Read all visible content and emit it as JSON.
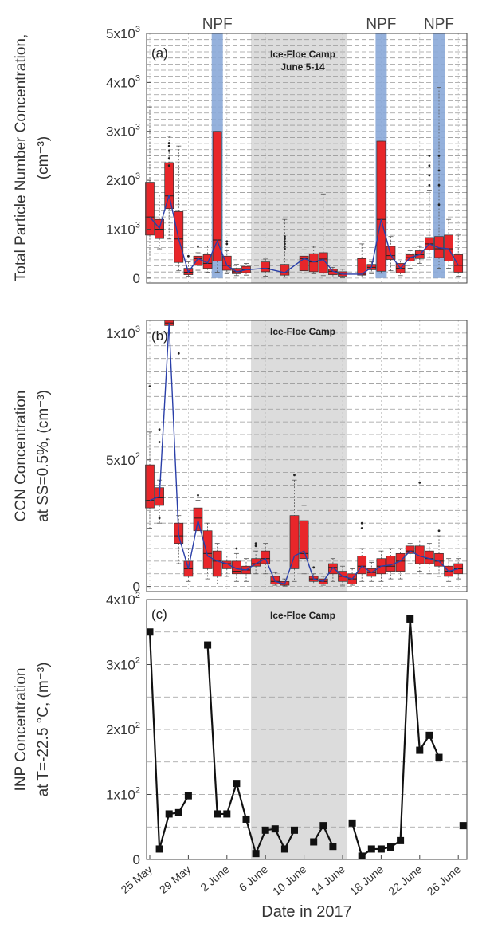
{
  "chart_data": [
    {
      "type": "box",
      "panel_label": "(a)",
      "ylabel_line1": "Total Particle Number Concentration,",
      "ylabel_line2": "(cm⁻³)",
      "ylim": [
        -100,
        5000
      ],
      "yticks": [
        {
          "value": 0,
          "base": "0",
          "exp": ""
        },
        {
          "value": 1000,
          "base": "1x10",
          "exp": "3"
        },
        {
          "value": 2000,
          "base": "2x10",
          "exp": "3"
        },
        {
          "value": 3000,
          "base": "3x10",
          "exp": "3"
        },
        {
          "value": 4000,
          "base": "4x10",
          "exp": "3"
        },
        {
          "value": 5000,
          "base": "5x10",
          "exp": "3"
        }
      ],
      "camp_label_line1": "Ice-Floe Camp",
      "camp_label_line2": "June 5-14",
      "camp_start": 10.5,
      "camp_end": 20.5,
      "npf_events": [
        {
          "label": "NPF",
          "day": 7.0,
          "top": 3000
        },
        {
          "label": "NPF",
          "day": 24.0,
          "top": 2800
        },
        {
          "label": "NPF",
          "day": 30.0,
          "top": 900
        }
      ],
      "boxes": [
        {
          "day": 0,
          "q1": 880,
          "med": 1250,
          "q3": 1960,
          "lo": 350,
          "hi": 3500,
          "mean": 1250
        },
        {
          "day": 1,
          "q1": 810,
          "med": 1000,
          "q3": 1200,
          "lo": 600,
          "hi": 1700,
          "mean": 1020
        },
        {
          "day": 2,
          "q1": 1420,
          "med": 1680,
          "q3": 2360,
          "lo": 800,
          "hi": 2900,
          "mean": 1700
        },
        {
          "day": 3,
          "q1": 320,
          "med": 800,
          "q3": 1360,
          "lo": 150,
          "hi": 2700,
          "mean": 800
        },
        {
          "day": 4,
          "q1": 70,
          "med": 120,
          "q3": 200,
          "lo": 40,
          "hi": 330,
          "mean": 120
        },
        {
          "day": 5,
          "q1": 260,
          "med": 400,
          "q3": 450,
          "lo": 160,
          "hi": 520,
          "mean": 400
        },
        {
          "day": 6,
          "q1": 200,
          "med": 300,
          "q3": 480,
          "lo": 120,
          "hi": 660,
          "mean": 310
        },
        {
          "day": 7,
          "q1": 350,
          "med": 780,
          "q3": 3000,
          "lo": 120,
          "hi": 3000,
          "mean": 760
        },
        {
          "day": 8,
          "q1": 160,
          "med": 260,
          "q3": 450,
          "lo": 90,
          "hi": 560,
          "mean": 260
        },
        {
          "day": 9,
          "q1": 90,
          "med": 130,
          "q3": 200,
          "lo": 50,
          "hi": 280,
          "mean": 130
        },
        {
          "day": 10,
          "q1": 110,
          "med": 170,
          "q3": 240,
          "lo": 60,
          "hi": 300,
          "mean": 170
        },
        {
          "day": 12,
          "q1": 130,
          "med": 200,
          "q3": 330,
          "lo": 40,
          "hi": 390,
          "mean": 200
        },
        {
          "day": 14,
          "q1": 60,
          "med": 110,
          "q3": 280,
          "lo": 20,
          "hi": 1200,
          "mean": 110
        },
        {
          "day": 16,
          "q1": 150,
          "med": 400,
          "q3": 450,
          "lo": 100,
          "hi": 580,
          "mean": 400
        },
        {
          "day": 17,
          "q1": 130,
          "med": 330,
          "q3": 500,
          "lo": 90,
          "hi": 650,
          "mean": 330
        },
        {
          "day": 18,
          "q1": 110,
          "med": 390,
          "q3": 520,
          "lo": 50,
          "hi": 1720,
          "mean": 380
        },
        {
          "day": 19,
          "q1": 70,
          "med": 140,
          "q3": 180,
          "lo": 20,
          "hi": 220,
          "mean": 140
        },
        {
          "day": 20,
          "q1": 40,
          "med": 80,
          "q3": 130,
          "lo": 10,
          "hi": 180,
          "mean": 80
        },
        {
          "day": 22,
          "q1": 60,
          "med": 80,
          "q3": 400,
          "lo": 20,
          "hi": 700,
          "mean": 80
        },
        {
          "day": 23,
          "q1": 170,
          "med": 220,
          "q3": 280,
          "lo": 90,
          "hi": 330,
          "mean": 220
        },
        {
          "day": 24,
          "q1": 140,
          "med": 1200,
          "q3": 2800,
          "lo": 100,
          "hi": 2800,
          "mean": 1200
        },
        {
          "day": 25,
          "q1": 380,
          "med": 460,
          "q3": 650,
          "lo": 150,
          "hi": 850,
          "mean": 470
        },
        {
          "day": 26,
          "q1": 110,
          "med": 200,
          "q3": 300,
          "lo": 50,
          "hi": 350,
          "mean": 200
        },
        {
          "day": 27,
          "q1": 350,
          "med": 420,
          "q3": 480,
          "lo": 200,
          "hi": 560,
          "mean": 420
        },
        {
          "day": 28,
          "q1": 400,
          "med": 480,
          "q3": 560,
          "lo": 300,
          "hi": 650,
          "mean": 480
        },
        {
          "day": 29,
          "q1": 580,
          "med": 700,
          "q3": 830,
          "lo": 420,
          "hi": 1800,
          "mean": 700
        },
        {
          "day": 30,
          "q1": 420,
          "med": 600,
          "q3": 850,
          "lo": 200,
          "hi": 3900,
          "mean": 620
        },
        {
          "day": 31,
          "q1": 350,
          "med": 600,
          "q3": 880,
          "lo": 200,
          "hi": 1200,
          "mean": 600
        },
        {
          "day": 32,
          "q1": 120,
          "med": 260,
          "q3": 480,
          "lo": 40,
          "hi": 880,
          "mean": 260
        }
      ],
      "outliers": [
        {
          "day": 2,
          "y": 2300
        },
        {
          "day": 2,
          "y": 2450
        },
        {
          "day": 2,
          "y": 2600
        },
        {
          "day": 2,
          "y": 2700
        },
        {
          "day": 2,
          "y": 2760
        },
        {
          "day": 4,
          "y": 450
        },
        {
          "day": 5,
          "y": 650
        },
        {
          "day": 8,
          "y": 700
        },
        {
          "day": 8,
          "y": 750
        },
        {
          "day": 14,
          "y": 600
        },
        {
          "day": 14,
          "y": 650
        },
        {
          "day": 14,
          "y": 700
        },
        {
          "day": 14,
          "y": 750
        },
        {
          "day": 14,
          "y": 800
        },
        {
          "day": 14,
          "y": 850
        },
        {
          "day": 29,
          "y": 1900
        },
        {
          "day": 29,
          "y": 2100
        },
        {
          "day": 29,
          "y": 2300
        },
        {
          "day": 29,
          "y": 2500
        },
        {
          "day": 30,
          "y": 1500
        },
        {
          "day": 30,
          "y": 1900
        },
        {
          "day": 30,
          "y": 2200
        },
        {
          "day": 30,
          "y": 2500
        }
      ]
    },
    {
      "type": "box",
      "panel_label": "(b)",
      "ylabel_line1": "CCN Concentration",
      "ylabel_line2": "at SS=0.5%, (cm⁻³)",
      "ylim": [
        -20,
        1050
      ],
      "yticks": [
        {
          "value": 0,
          "base": "0",
          "exp": ""
        },
        {
          "value": 500,
          "base": "5x10",
          "exp": "2"
        },
        {
          "value": 1000,
          "base": "1x10",
          "exp": "3"
        }
      ],
      "camp_label_line1": "Ice-Floe Camp",
      "camp_label_line2": "",
      "camp_start": 10.5,
      "camp_end": 20.5,
      "npf_events": [],
      "boxes": [
        {
          "day": 0,
          "q1": 310,
          "med": 340,
          "q3": 480,
          "lo": 230,
          "hi": 610,
          "mean": 340
        },
        {
          "day": 1,
          "q1": 320,
          "med": 350,
          "q3": 390,
          "lo": 250,
          "hi": 420,
          "mean": 355
        },
        {
          "day": 2,
          "q1": 1030,
          "med": 1040,
          "q3": 1050,
          "lo": 1000,
          "hi": 1050,
          "mean": 1040
        },
        {
          "day": 3,
          "q1": 170,
          "med": 200,
          "q3": 250,
          "lo": 90,
          "hi": 280,
          "mean": 200
        },
        {
          "day": 4,
          "q1": 40,
          "med": 70,
          "q3": 100,
          "lo": 20,
          "hi": 150,
          "mean": 70
        },
        {
          "day": 5,
          "q1": 220,
          "med": 270,
          "q3": 310,
          "lo": 150,
          "hi": 340,
          "mean": 260
        },
        {
          "day": 6,
          "q1": 70,
          "med": 130,
          "q3": 220,
          "lo": 30,
          "hi": 250,
          "mean": 120
        },
        {
          "day": 7,
          "q1": 40,
          "med": 100,
          "q3": 140,
          "lo": 10,
          "hi": 170,
          "mean": 100
        },
        {
          "day": 8,
          "q1": 70,
          "med": 90,
          "q3": 100,
          "lo": 40,
          "hi": 120,
          "mean": 90
        },
        {
          "day": 9,
          "q1": 50,
          "med": 60,
          "q3": 100,
          "lo": 20,
          "hi": 130,
          "mean": 70
        },
        {
          "day": 10,
          "q1": 50,
          "med": 65,
          "q3": 80,
          "lo": 20,
          "hi": 110,
          "mean": 65
        },
        {
          "day": 11,
          "q1": 80,
          "med": 90,
          "q3": 110,
          "lo": 50,
          "hi": 140,
          "mean": 90
        },
        {
          "day": 12,
          "q1": 90,
          "med": 110,
          "q3": 140,
          "lo": 50,
          "hi": 170,
          "mean": 110
        },
        {
          "day": 13,
          "q1": 10,
          "med": 20,
          "q3": 40,
          "lo": 5,
          "hi": 55,
          "mean": 20
        },
        {
          "day": 14,
          "q1": 5,
          "med": 10,
          "q3": 20,
          "lo": 2,
          "hi": 30,
          "mean": 10
        },
        {
          "day": 15,
          "q1": 70,
          "med": 120,
          "q3": 280,
          "lo": 20,
          "hi": 420,
          "mean": 120
        },
        {
          "day": 16,
          "q1": 110,
          "med": 130,
          "q3": 260,
          "lo": 50,
          "hi": 320,
          "mean": 140
        },
        {
          "day": 17,
          "q1": 20,
          "med": 30,
          "q3": 40,
          "lo": 10,
          "hi": 50,
          "mean": 30
        },
        {
          "day": 18,
          "q1": 10,
          "med": 20,
          "q3": 30,
          "lo": 5,
          "hi": 40,
          "mean": 20
        },
        {
          "day": 19,
          "q1": 50,
          "med": 75,
          "q3": 90,
          "lo": 20,
          "hi": 110,
          "mean": 75
        },
        {
          "day": 20,
          "q1": 20,
          "med": 40,
          "q3": 60,
          "lo": 5,
          "hi": 80,
          "mean": 40
        },
        {
          "day": 21,
          "q1": 10,
          "med": 30,
          "q3": 50,
          "lo": 5,
          "hi": 70,
          "mean": 30
        },
        {
          "day": 22,
          "q1": 50,
          "med": 80,
          "q3": 120,
          "lo": 20,
          "hi": 150,
          "mean": 80
        },
        {
          "day": 23,
          "q1": 40,
          "med": 55,
          "q3": 70,
          "lo": 20,
          "hi": 95,
          "mean": 55
        },
        {
          "day": 24,
          "q1": 50,
          "med": 80,
          "q3": 110,
          "lo": 20,
          "hi": 140,
          "mean": 80
        },
        {
          "day": 25,
          "q1": 60,
          "med": 80,
          "q3": 120,
          "lo": 30,
          "hi": 150,
          "mean": 85
        },
        {
          "day": 26,
          "q1": 60,
          "med": 100,
          "q3": 130,
          "lo": 30,
          "hi": 150,
          "mean": 100
        },
        {
          "day": 27,
          "q1": 130,
          "med": 140,
          "q3": 160,
          "lo": 90,
          "hi": 170,
          "mean": 140
        },
        {
          "day": 28,
          "q1": 90,
          "med": 120,
          "q3": 160,
          "lo": 60,
          "hi": 180,
          "mean": 120
        },
        {
          "day": 29,
          "q1": 90,
          "med": 110,
          "q3": 140,
          "lo": 50,
          "hi": 170,
          "mean": 110
        },
        {
          "day": 30,
          "q1": 80,
          "med": 100,
          "q3": 130,
          "lo": 40,
          "hi": 200,
          "mean": 100
        },
        {
          "day": 31,
          "q1": 40,
          "med": 60,
          "q3": 80,
          "lo": 20,
          "hi": 110,
          "mean": 60
        },
        {
          "day": 32,
          "q1": 50,
          "med": 70,
          "q3": 90,
          "lo": 30,
          "hi": 110,
          "mean": 70
        }
      ],
      "outliers": [
        {
          "day": 0,
          "y": 790
        },
        {
          "day": 1,
          "y": 570
        },
        {
          "day": 1,
          "y": 620
        },
        {
          "day": 1,
          "y": 270
        },
        {
          "day": 3,
          "y": 920
        },
        {
          "day": 5,
          "y": 360
        },
        {
          "day": 9,
          "y": 150
        },
        {
          "day": 11,
          "y": 160
        },
        {
          "day": 11,
          "y": 170
        },
        {
          "day": 15,
          "y": 440
        },
        {
          "day": 17,
          "y": 75
        },
        {
          "day": 22,
          "y": 250
        },
        {
          "day": 22,
          "y": 230
        },
        {
          "day": 28,
          "y": 410
        },
        {
          "day": 30,
          "y": 220
        }
      ]
    },
    {
      "type": "line",
      "panel_label": "(c)",
      "ylabel_line1": "INP Concentration",
      "ylabel_line2": "at T=-22.5 °C, (m⁻³)",
      "xlabel": "Date in 2017",
      "ylim": [
        0,
        400
      ],
      "yticks": [
        {
          "value": 0,
          "base": "0",
          "exp": ""
        },
        {
          "value": 100,
          "base": "1x10",
          "exp": "2"
        },
        {
          "value": 200,
          "base": "2x10",
          "exp": "2"
        },
        {
          "value": 300,
          "base": "3x10",
          "exp": "2"
        },
        {
          "value": 400,
          "base": "4x10",
          "exp": "2"
        }
      ],
      "camp_label_line1": "Ice-Floe Camp",
      "camp_label_line2": "",
      "camp_start": 10.5,
      "camp_end": 20.5,
      "x_tick_labels": [
        {
          "day": 0,
          "label": "25 May"
        },
        {
          "day": 4,
          "label": "29 May"
        },
        {
          "day": 8,
          "label": "2 June"
        },
        {
          "day": 12,
          "label": "6 June"
        },
        {
          "day": 16,
          "label": "10 June"
        },
        {
          "day": 20,
          "label": "14 June"
        },
        {
          "day": 24,
          "label": "18 June"
        },
        {
          "day": 28,
          "label": "22 June"
        },
        {
          "day": 32,
          "label": "26 June"
        }
      ],
      "segments": [
        [
          [
            0,
            350
          ],
          [
            1,
            16
          ],
          [
            2,
            70
          ],
          [
            3,
            72
          ],
          [
            4,
            98
          ]
        ],
        [
          [
            6,
            330
          ],
          [
            7,
            70
          ],
          [
            8,
            70
          ],
          [
            9,
            117
          ],
          [
            10,
            62
          ],
          [
            11,
            9
          ],
          [
            12,
            45
          ],
          [
            13,
            47
          ],
          [
            14,
            16
          ],
          [
            15,
            45
          ]
        ],
        [
          [
            17,
            27
          ],
          [
            18,
            52
          ],
          [
            19,
            20
          ]
        ],
        [
          [
            21,
            56
          ],
          [
            22,
            5
          ],
          [
            23,
            16
          ],
          [
            24,
            16
          ],
          [
            25,
            19
          ],
          [
            26,
            29
          ],
          [
            27,
            370
          ],
          [
            28,
            168
          ],
          [
            29,
            191
          ],
          [
            30,
            157
          ]
        ],
        [
          [
            32.5,
            52
          ]
        ]
      ]
    }
  ]
}
